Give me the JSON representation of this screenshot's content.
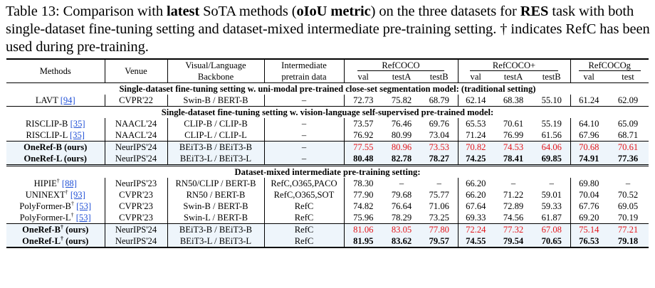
{
  "caption": {
    "part1": "Table 13: Comparison with ",
    "latest": "latest",
    "part2": " SoTA methods (",
    "metric": "oIoU metric",
    "part3": ") on the three datasets for ",
    "task": "RES",
    "part4": " task with both single-dataset fine-tuning setting and dataset-mixed intermediate pre-training setting. † indicates RefC has been used during pre-training."
  },
  "header": {
    "methods": "Methods",
    "venue": "Venue",
    "backbone_l1": "Visual/Language",
    "backbone_l2": "Backbone",
    "pretrain_l1": "Intermediate",
    "pretrain_l2": "pretrain data",
    "refcoco": "RefCOCO",
    "refcocop": "RefCOCO+",
    "refcocog": "RefCOCOg",
    "val": "val",
    "testA": "testA",
    "testB": "testB",
    "test": "test"
  },
  "sections": {
    "s1": "Single-dataset fine-tuning setting w. uni-modal pre-trained close-set segmentation model: (traditional setting)",
    "s2": "Single-dataset fine-tuning setting w. vision-language self-supervised pre-trained model:",
    "s3": "Dataset-mixed intermediate pre-training setting:"
  },
  "rows": [
    {
      "method": "LAVT ",
      "ref": "[94]",
      "dagger": "",
      "suffix": "",
      "venue": "CVPR'22",
      "backbone": "Swin-B / BERT-B",
      "pretrain": "–",
      "v": [
        "72.73",
        "75.82",
        "68.79",
        "62.14",
        "68.38",
        "55.10",
        "61.24",
        "62.09"
      ]
    },
    {
      "method": "RISCLIP-B ",
      "ref": "[35]",
      "dagger": "",
      "suffix": "",
      "venue": "NAACL'24",
      "backbone": "CLIP-B / CLIP-B",
      "pretrain": "–",
      "v": [
        "73.57",
        "76.46",
        "69.76",
        "65.53",
        "70.61",
        "55.19",
        "64.10",
        "65.09"
      ]
    },
    {
      "method": "RISCLIP-L ",
      "ref": "[35]",
      "dagger": "",
      "suffix": "",
      "venue": "NAACL'24",
      "backbone": "CLIP-L / CLIP-L",
      "pretrain": "–",
      "v": [
        "76.92",
        "80.99",
        "73.04",
        "71.24",
        "76.99",
        "61.56",
        "67.96",
        "68.71"
      ]
    },
    {
      "method": "OneRef-B (ours)",
      "ref": "",
      "dagger": "",
      "suffix": "",
      "venue": "NeurIPS'24",
      "backbone": "BEiT3-B / BEiT3-B",
      "pretrain": "–",
      "v": [
        "77.55",
        "80.96",
        "73.53",
        "70.82",
        "74.53",
        "64.06",
        "70.68",
        "70.61"
      ]
    },
    {
      "method": "OneRef-L (ours)",
      "ref": "",
      "dagger": "",
      "suffix": "",
      "venue": "NeurIPS'24",
      "backbone": "BEiT3-L / BEiT3-L",
      "pretrain": "–",
      "v": [
        "80.48",
        "82.78",
        "78.27",
        "74.25",
        "78.41",
        "69.85",
        "74.91",
        "77.36"
      ]
    },
    {
      "method": "HIPIE",
      "ref": "[88]",
      "dagger": "†",
      "suffix": "",
      "venue": "NeurIPS'23",
      "backbone": "RN50/CLIP / BERT-B",
      "pretrain": "RefC,O365,PACO",
      "v": [
        "78.30",
        "–",
        "–",
        "66.20",
        "–",
        "–",
        "69.80",
        "–"
      ]
    },
    {
      "method": "UNINEXT",
      "ref": "[93]",
      "dagger": "†",
      "suffix": "",
      "venue": "CVPR'23",
      "backbone": "RN50 / BERT-B",
      "pretrain": "RefC,O365,SOT",
      "v": [
        "77.90",
        "79.68",
        "75.77",
        "66.20",
        "71.22",
        "59.01",
        "70.04",
        "70.52"
      ]
    },
    {
      "method": "PolyFormer-B",
      "ref": "[53]",
      "dagger": "†",
      "suffix": "",
      "venue": "CVPR'23",
      "backbone": "Swin-B / BERT-B",
      "pretrain": "RefC",
      "v": [
        "74.82",
        "76.64",
        "71.06",
        "67.64",
        "72.89",
        "59.33",
        "67.76",
        "69.05"
      ]
    },
    {
      "method": "PolyFormer-L",
      "ref": "[53]",
      "dagger": "†",
      "suffix": "",
      "venue": "CVPR'23",
      "backbone": "Swin-L / BERT-B",
      "pretrain": "RefC",
      "v": [
        "75.96",
        "78.29",
        "73.25",
        "69.33",
        "74.56",
        "61.87",
        "69.20",
        "70.19"
      ]
    },
    {
      "method": "OneRef-B",
      "ref": "",
      "dagger": "†",
      "suffix": " (ours)",
      "venue": "NeurIPS'24",
      "backbone": "BEiT3-B / BEiT3-B",
      "pretrain": "RefC",
      "v": [
        "81.06",
        "83.05",
        "77.80",
        "72.24",
        "77.32",
        "67.08",
        "75.14",
        "77.21"
      ]
    },
    {
      "method": "OneRef-L",
      "ref": "",
      "dagger": "†",
      "suffix": " (ours)",
      "venue": "NeurIPS'24",
      "backbone": "BEiT3-L / BEiT3-L",
      "pretrain": "RefC",
      "v": [
        "81.95",
        "83.62",
        "79.57",
        "74.55",
        "79.54",
        "70.65",
        "76.53",
        "79.18"
      ]
    }
  ],
  "colors": {
    "best": "#e3161b",
    "ours_bg": "#eef5fb",
    "ref_link": "#1f4fd6"
  }
}
